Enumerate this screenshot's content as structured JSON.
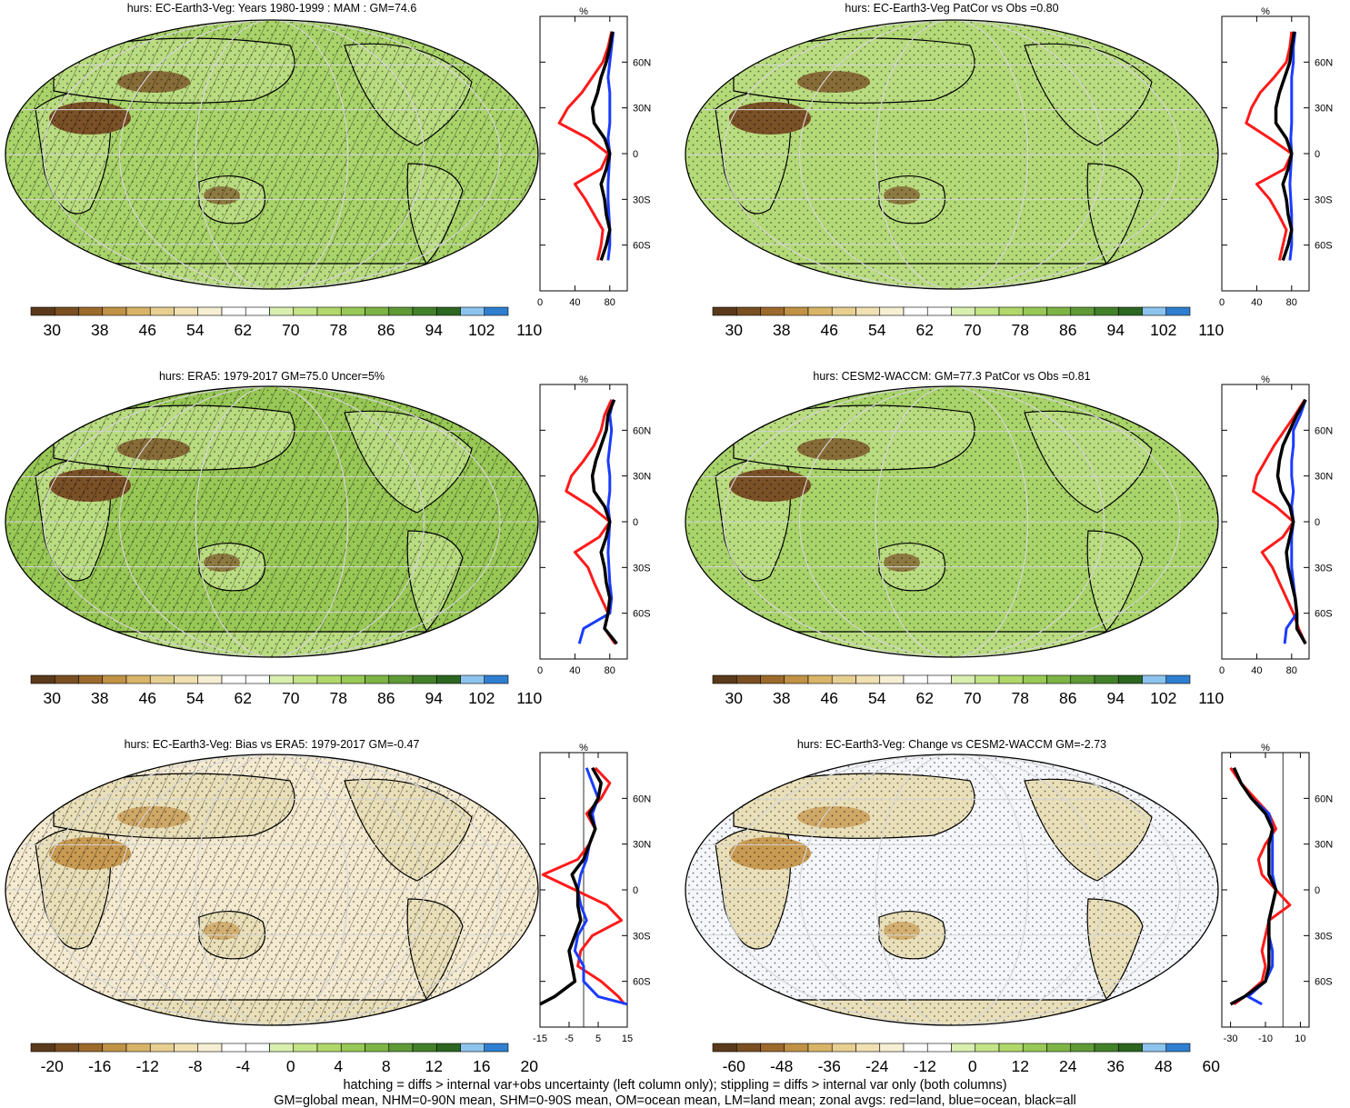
{
  "colors": {
    "abs_palette": [
      "#5a3a1a",
      "#7a4f22",
      "#9c6a2c",
      "#c09245",
      "#d8b468",
      "#e7cf92",
      "#f0e0b2",
      "#f7efd4",
      "#ffffff",
      "#ffffff",
      "#d9efb0",
      "#c4e488",
      "#b0d86a",
      "#98c855",
      "#7db445",
      "#5f9a37",
      "#43802a",
      "#2c6620",
      "#8cc4ee",
      "#2f7fd0"
    ],
    "diff_palette": [
      "#5a3a1a",
      "#7a4f22",
      "#9c6a2c",
      "#c09245",
      "#d8b468",
      "#e7cf92",
      "#f0e0b2",
      "#f7efd4",
      "#ffffff",
      "#ffffff",
      "#d9efb0",
      "#c4e488",
      "#b0d86a",
      "#98c855",
      "#7db445",
      "#5f9a37",
      "#43802a",
      "#2c6620",
      "#8cc4ee",
      "#2f7fd0"
    ],
    "land": "#ff1a1a",
    "ocean": "#1a3cff",
    "all": "#000000"
  },
  "panels": [
    {
      "title": "hurs: EC-Earth3-Veg: Years 1980-1999 : MAM : GM=74.6",
      "map_fill": "#a9d46a",
      "map_kind": "abs",
      "hatch": true,
      "stipple": true,
      "cbar_labels": [
        "30",
        "38",
        "46",
        "54",
        "62",
        "70",
        "78",
        "86",
        "94",
        "102",
        "110"
      ],
      "palette": "abs_palette",
      "profile_x_ticks": [
        "0",
        "40",
        "80"
      ]
    },
    {
      "title": "hurs: EC-Earth3-Veg PatCor vs Obs =0.80",
      "map_fill": "#b4da78",
      "map_kind": "abs",
      "hatch": false,
      "stipple": true,
      "cbar_labels": [
        "30",
        "38",
        "46",
        "54",
        "62",
        "70",
        "78",
        "86",
        "94",
        "102",
        "110"
      ],
      "palette": "abs_palette",
      "profile_x_ticks": [
        "0",
        "40",
        "80"
      ]
    },
    {
      "title": "hurs: ERA5: 1979-2017 GM=75.0 Uncer=5%",
      "map_fill": "#98c855",
      "map_kind": "abs",
      "hatch": true,
      "stipple": true,
      "cbar_labels": [
        "30",
        "38",
        "46",
        "54",
        "62",
        "70",
        "78",
        "86",
        "94",
        "102",
        "110"
      ],
      "palette": "abs_palette",
      "profile_x_ticks": [
        "0",
        "40",
        "80"
      ]
    },
    {
      "title": "hurs: CESM2-WACCM: GM=77.3 PatCor vs Obs =0.81",
      "map_fill": "#a9d46a",
      "map_kind": "abs",
      "hatch": false,
      "stipple": true,
      "cbar_labels": [
        "30",
        "38",
        "46",
        "54",
        "62",
        "70",
        "78",
        "86",
        "94",
        "102",
        "110"
      ],
      "palette": "abs_palette",
      "profile_x_ticks": [
        "0",
        "40",
        "80"
      ]
    },
    {
      "title": "hurs: EC-Earth3-Veg: Bias vs ERA5: 1979-2017 GM=-0.47",
      "map_fill": "#f4ead0",
      "map_kind": "diff",
      "hatch": true,
      "stipple": true,
      "cbar_labels": [
        "-20",
        "-16",
        "-12",
        "-8",
        "-4",
        "0",
        "4",
        "8",
        "12",
        "16",
        "20"
      ],
      "palette": "diff_palette",
      "profile_x_ticks": [
        "-15",
        "-5",
        "5",
        "15"
      ]
    },
    {
      "title": "hurs: EC-Earth3-Veg: Change vs CESM2-WACCM GM=-2.73",
      "map_fill": "#f4f6fa",
      "map_kind": "diff",
      "hatch": false,
      "stipple": true,
      "cbar_labels": [
        "-60",
        "-48",
        "-36",
        "-24",
        "-12",
        "0",
        "12",
        "24",
        "36",
        "48",
        "60"
      ],
      "palette": "diff_palette",
      "profile_x_ticks": [
        "-30",
        "-10",
        "10"
      ]
    }
  ],
  "profile_common": {
    "title": "%",
    "y_ticks": [
      "60N",
      "30N",
      "0",
      "30S",
      "60S"
    ]
  },
  "footer": {
    "line1": "hatching = diffs > internal var+obs uncertainty (left column only); stippling = diffs > internal var only (both columns)",
    "line2": "GM=global mean, NHM=0-90N mean, SHM=0-90S mean, OM=ocean mean, LM=land mean; zonal avgs: red=land, blue=ocean, black=all"
  },
  "chart_data": [
    {
      "type": "line",
      "title": "%",
      "ylim": [
        "90S",
        "90N"
      ],
      "xlim": [
        0,
        100
      ],
      "latitudes": [
        80,
        70,
        60,
        50,
        40,
        30,
        20,
        10,
        0,
        -10,
        -20,
        -30,
        -40,
        -50,
        -60,
        -70
      ],
      "series": [
        {
          "name": "red=land",
          "values": [
            82,
            78,
            72,
            60,
            48,
            32,
            22,
            55,
            78,
            70,
            40,
            52,
            62,
            72,
            70,
            66
          ]
        },
        {
          "name": "blue=ocean",
          "values": [
            84,
            82,
            80,
            78,
            80,
            80,
            80,
            78,
            80,
            79,
            78,
            78,
            79,
            80,
            80,
            78
          ]
        },
        {
          "name": "black=all",
          "values": [
            83,
            80,
            76,
            70,
            66,
            60,
            62,
            74,
            80,
            76,
            70,
            74,
            76,
            80,
            76,
            70
          ]
        }
      ]
    },
    {
      "type": "line",
      "title": "%",
      "ylim": [
        "90S",
        "90N"
      ],
      "xlim": [
        0,
        100
      ],
      "latitudes": [
        80,
        70,
        60,
        50,
        40,
        30,
        20,
        10,
        0,
        -10,
        -20,
        -30,
        -40,
        -50,
        -60,
        -70
      ],
      "series": [
        {
          "name": "red=land",
          "values": [
            80,
            78,
            74,
            60,
            44,
            34,
            28,
            55,
            80,
            72,
            40,
            55,
            65,
            74,
            70,
            66
          ]
        },
        {
          "name": "blue=ocean",
          "values": [
            84,
            82,
            82,
            80,
            80,
            80,
            80,
            79,
            80,
            79,
            78,
            79,
            80,
            80,
            80,
            78
          ]
        },
        {
          "name": "black=all",
          "values": [
            83,
            80,
            78,
            72,
            66,
            62,
            62,
            74,
            80,
            76,
            70,
            74,
            76,
            80,
            76,
            70
          ]
        }
      ]
    },
    {
      "type": "line",
      "title": "%",
      "ylim": [
        "90S",
        "90N"
      ],
      "xlim": [
        0,
        100
      ],
      "latitudes": [
        80,
        70,
        60,
        50,
        40,
        30,
        20,
        10,
        0,
        -10,
        -20,
        -30,
        -40,
        -50,
        -60,
        -70,
        -80
      ],
      "series": [
        {
          "name": "red=land",
          "values": [
            82,
            74,
            70,
            62,
            50,
            36,
            30,
            58,
            80,
            68,
            40,
            55,
            62,
            70,
            78,
            74,
            86
          ]
        },
        {
          "name": "blue=ocean",
          "values": [
            84,
            80,
            82,
            80,
            78,
            80,
            80,
            78,
            80,
            79,
            78,
            79,
            80,
            82,
            80,
            50,
            45
          ]
        },
        {
          "name": "black=all",
          "values": [
            85,
            78,
            76,
            70,
            64,
            60,
            62,
            74,
            80,
            76,
            70,
            74,
            76,
            80,
            78,
            74,
            88
          ]
        }
      ]
    },
    {
      "type": "line",
      "title": "%",
      "ylim": [
        "90S",
        "90N"
      ],
      "xlim": [
        0,
        100
      ],
      "latitudes": [
        80,
        70,
        60,
        50,
        40,
        30,
        20,
        10,
        0,
        -10,
        -20,
        -30,
        -40,
        -50,
        -60,
        -70,
        -80
      ],
      "series": [
        {
          "name": "red=land",
          "values": [
            95,
            84,
            72,
            60,
            50,
            40,
            36,
            62,
            82,
            70,
            46,
            58,
            66,
            74,
            82,
            88,
            96
          ]
        },
        {
          "name": "blue=ocean",
          "values": [
            96,
            90,
            82,
            82,
            80,
            80,
            82,
            80,
            82,
            80,
            80,
            80,
            82,
            84,
            86,
            74,
            72
          ]
        },
        {
          "name": "black=all",
          "values": [
            96,
            86,
            78,
            70,
            66,
            64,
            68,
            78,
            82,
            78,
            74,
            76,
            80,
            84,
            86,
            86,
            96
          ]
        }
      ]
    },
    {
      "type": "line",
      "title": "%",
      "ylim": [
        "90S",
        "90N"
      ],
      "xlim": [
        -15,
        15
      ],
      "latitudes": [
        80,
        70,
        60,
        50,
        40,
        30,
        20,
        10,
        0,
        -10,
        -20,
        -30,
        -40,
        -50,
        -60,
        -70,
        -75
      ],
      "series": [
        {
          "name": "red=land",
          "values": [
            4,
            9,
            6,
            1,
            4,
            2,
            -2,
            -14,
            -3,
            8,
            13,
            3,
            -1,
            -2,
            6,
            12,
            14
          ]
        },
        {
          "name": "blue=ocean",
          "values": [
            1,
            3,
            5,
            3,
            4,
            2,
            1,
            -1,
            -2,
            -1,
            1,
            -2,
            -3,
            0,
            0,
            5,
            15
          ]
        },
        {
          "name": "black=all",
          "values": [
            3,
            6,
            5,
            2,
            4,
            2,
            0,
            -4,
            -2,
            -2,
            -1,
            -3,
            -5,
            -4,
            -3,
            -10,
            -15
          ]
        }
      ]
    },
    {
      "type": "line",
      "title": "%",
      "ylim": [
        "90S",
        "90N"
      ],
      "xlim": [
        -35,
        15
      ],
      "latitudes": [
        80,
        70,
        60,
        50,
        40,
        30,
        20,
        10,
        0,
        -10,
        -20,
        -30,
        -40,
        -50,
        -60,
        -70,
        -75
      ],
      "series": [
        {
          "name": "red=land",
          "values": [
            -30,
            -24,
            -16,
            -8,
            -4,
            -10,
            -14,
            -12,
            -4,
            4,
            -8,
            -10,
            -12,
            -10,
            -12,
            -22,
            -28
          ]
        },
        {
          "name": "blue=ocean",
          "values": [
            -28,
            -24,
            -18,
            -8,
            -6,
            -6,
            -6,
            -6,
            -4,
            -6,
            -8,
            -8,
            -6,
            -6,
            -10,
            -20,
            -12
          ]
        },
        {
          "name": "black=all",
          "values": [
            -28,
            -24,
            -18,
            -10,
            -6,
            -8,
            -8,
            -8,
            -4,
            -6,
            -8,
            -8,
            -8,
            -8,
            -10,
            -22,
            -30
          ]
        }
      ]
    }
  ]
}
